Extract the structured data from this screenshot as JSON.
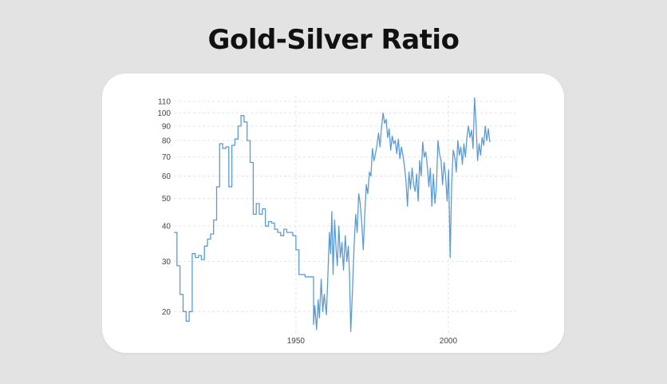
{
  "title": "Gold-Silver Ratio",
  "colors": {
    "background": "#e3e3e3",
    "card": "#ffffff",
    "line": "#5b9bd5",
    "grid": "#e3e3e3",
    "title": "#111111"
  },
  "chart_data": {
    "type": "line",
    "title": "Gold-Silver Ratio",
    "xlabel": "",
    "ylabel": "",
    "y_scale": "log",
    "xlim": [
      1910,
      2022
    ],
    "ylim": [
      16.5,
      115
    ],
    "y_ticks": [
      20,
      30,
      40,
      50,
      60,
      70,
      80,
      90,
      100,
      110
    ],
    "x_ticks": [
      1950,
      2000
    ],
    "grid": true,
    "legend": "none",
    "series": [
      {
        "step": [
          [
            1910,
            38
          ],
          [
            1911,
            29
          ],
          [
            1912,
            23
          ],
          [
            1913,
            20
          ],
          [
            1914,
            18.5
          ],
          [
            1915,
            20
          ],
          [
            1916,
            32
          ],
          [
            1917,
            31
          ],
          [
            1918,
            31.5
          ],
          [
            1919,
            30.5
          ],
          [
            1920,
            34
          ],
          [
            1921,
            36
          ],
          [
            1922,
            37.5
          ],
          [
            1923,
            42
          ],
          [
            1924,
            55
          ],
          [
            1925,
            78
          ],
          [
            1926,
            75
          ],
          [
            1927,
            76
          ],
          [
            1928,
            55
          ],
          [
            1929,
            77
          ],
          [
            1930,
            81
          ],
          [
            1931,
            90
          ],
          [
            1932,
            98
          ],
          [
            1933,
            93
          ],
          [
            1934,
            80
          ],
          [
            1935,
            67
          ],
          [
            1936,
            44
          ],
          [
            1937,
            48
          ],
          [
            1938,
            44
          ],
          [
            1939,
            46
          ],
          [
            1940,
            40
          ],
          [
            1941,
            41.5
          ],
          [
            1942,
            41
          ],
          [
            1943,
            39
          ],
          [
            1944,
            38
          ],
          [
            1945,
            37
          ],
          [
            1946,
            39
          ],
          [
            1947,
            38
          ],
          [
            1948,
            38
          ],
          [
            1949,
            37
          ],
          [
            1950,
            33
          ],
          [
            1951,
            27
          ],
          [
            1952,
            27
          ],
          [
            1953,
            26.5
          ],
          [
            1954,
            26.5
          ],
          [
            1955,
            26.5
          ]
        ]
      },
      {
        "line": [
          [
            1955.8,
            18
          ],
          [
            1956.2,
            21
          ],
          [
            1956.8,
            17.3
          ],
          [
            1957.3,
            22
          ],
          [
            1957.7,
            19
          ],
          [
            1958.3,
            26
          ],
          [
            1958.8,
            20
          ],
          [
            1959.3,
            23
          ],
          [
            1960,
            19.5
          ],
          [
            1960.6,
            29
          ],
          [
            1961,
            38
          ],
          [
            1961.4,
            32
          ],
          [
            1961.8,
            45
          ],
          [
            1962.2,
            27
          ],
          [
            1962.7,
            42
          ],
          [
            1963.2,
            33
          ],
          [
            1963.6,
            29
          ],
          [
            1964.1,
            40
          ],
          [
            1964.6,
            31
          ],
          [
            1965.1,
            35
          ],
          [
            1965.6,
            28
          ],
          [
            1966.2,
            37
          ],
          [
            1966.7,
            30
          ],
          [
            1967.2,
            34
          ],
          [
            1967.6,
            27
          ],
          [
            1968,
            17
          ],
          [
            1968.5,
            23
          ],
          [
            1969.1,
            34
          ],
          [
            1969.6,
            44
          ],
          [
            1970.1,
            38
          ],
          [
            1970.6,
            52
          ],
          [
            1971.1,
            48
          ],
          [
            1971.6,
            41
          ],
          [
            1972.1,
            33
          ],
          [
            1972.6,
            44
          ],
          [
            1973.1,
            56
          ],
          [
            1973.6,
            52
          ],
          [
            1974.1,
            62
          ],
          [
            1974.6,
            60
          ],
          [
            1975.1,
            75
          ],
          [
            1975.6,
            68
          ],
          [
            1976.1,
            72
          ],
          [
            1976.6,
            77
          ],
          [
            1977.1,
            85
          ],
          [
            1977.6,
            76
          ],
          [
            1978.1,
            89
          ],
          [
            1978.6,
            100
          ],
          [
            1979.1,
            92
          ],
          [
            1979.6,
            95
          ],
          [
            1980.1,
            82
          ],
          [
            1980.6,
            88
          ],
          [
            1981.1,
            74
          ],
          [
            1981.6,
            83
          ],
          [
            1982.1,
            78
          ],
          [
            1982.6,
            80
          ],
          [
            1983.1,
            72
          ],
          [
            1983.6,
            81
          ],
          [
            1984.1,
            69
          ],
          [
            1984.6,
            76
          ],
          [
            1985.1,
            71
          ],
          [
            1985.6,
            65
          ],
          [
            1986.1,
            58
          ],
          [
            1986.6,
            47
          ],
          [
            1987.1,
            62
          ],
          [
            1987.6,
            54
          ],
          [
            1988.1,
            64
          ],
          [
            1988.6,
            56
          ],
          [
            1989.1,
            53
          ],
          [
            1989.6,
            61
          ],
          [
            1990.1,
            49
          ],
          [
            1990.6,
            68
          ],
          [
            1991.1,
            60
          ],
          [
            1991.6,
            79
          ],
          [
            1992.1,
            70
          ],
          [
            1992.6,
            73
          ],
          [
            1993.1,
            65
          ],
          [
            1993.6,
            55
          ],
          [
            1994.1,
            64
          ],
          [
            1994.6,
            47
          ],
          [
            1995.1,
            61
          ],
          [
            1995.6,
            48
          ],
          [
            1996.1,
            55
          ],
          [
            1996.6,
            80
          ],
          [
            1997.1,
            72
          ],
          [
            1997.6,
            68
          ],
          [
            1998.1,
            56
          ],
          [
            1998.6,
            67
          ],
          [
            1999.1,
            60
          ],
          [
            1999.6,
            49
          ],
          [
            2000.1,
            63
          ],
          [
            2000.6,
            31
          ],
          [
            2001.1,
            56
          ],
          [
            2001.6,
            74
          ],
          [
            2002.1,
            70
          ],
          [
            2002.6,
            62
          ],
          [
            2003.1,
            80
          ],
          [
            2003.6,
            71
          ],
          [
            2004.1,
            76
          ],
          [
            2004.6,
            66
          ],
          [
            2005.1,
            78
          ],
          [
            2005.6,
            70
          ],
          [
            2006.1,
            82
          ],
          [
            2006.6,
            90
          ],
          [
            2007.1,
            82
          ],
          [
            2007.6,
            87
          ],
          [
            2008.1,
            75
          ],
          [
            2008.6,
            113
          ],
          [
            2009.1,
            92
          ],
          [
            2009.6,
            68
          ],
          [
            2010.1,
            78
          ],
          [
            2010.6,
            71
          ],
          [
            2011.1,
            82
          ],
          [
            2011.6,
            77
          ],
          [
            2012.1,
            90
          ],
          [
            2012.6,
            80
          ],
          [
            2013.1,
            88
          ],
          [
            2013.6,
            79
          ]
        ]
      }
    ]
  }
}
